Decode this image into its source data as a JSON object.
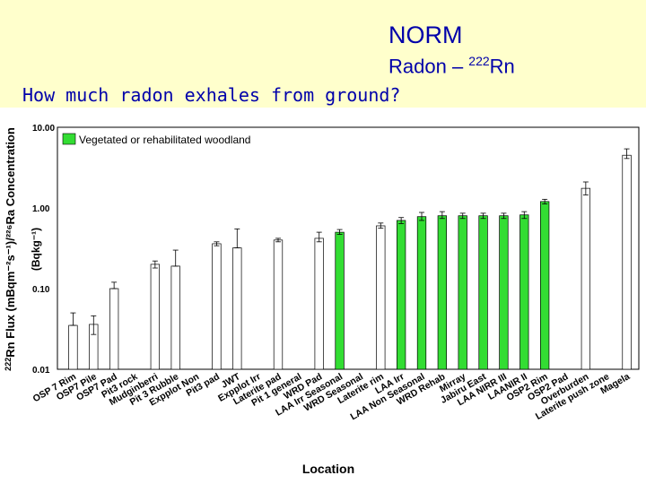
{
  "header": {
    "title": "NORM",
    "subtitle_prefix": "Radon – ",
    "subtitle_sup": "222",
    "subtitle_suffix": "Rn",
    "question": "How much radon exhales from ground?"
  },
  "chart_data": {
    "type": "bar",
    "xlabel": "Location",
    "ylabel_outer": "Rn Flux (mBqm⁻²s⁻¹)/²²⁶Ra Concentration",
    "ylabel_outer_sup": "222",
    "ylabel_inner": "(Bqkg⁻¹)",
    "y_scale": "log",
    "ylim": [
      0.01,
      10
    ],
    "yticks": [
      "10.00",
      "1.00",
      "0.10",
      "0.01"
    ],
    "ytick_values": [
      10,
      1,
      0.1,
      0.01
    ],
    "legend": {
      "label": "Vegetated or rehabilitated woodland",
      "color": "#33dd33",
      "placement": "top-left"
    },
    "colors": {
      "default": "#ffffff",
      "highlight": "#33dd33"
    },
    "categories": [
      "OSP 7 Rim",
      "OSP7 Pile",
      "OSP7 Pad",
      "Pit3 rock",
      "Mudginberri",
      "Pit 3 Rubble",
      "Expplot Non",
      "Pit3 pad",
      "JWT",
      "Expplot Irr",
      "Laterite pad",
      "Pit 1 general",
      "WRD Pad",
      "LAA Irr Seasonal",
      "WRD Seasonal",
      "Laterite rim",
      "LAA Irr",
      "LAA Non Seasonal",
      "WRD Rehab",
      "Mirray",
      "Jabiru East",
      "LAA NIRR III",
      "LAANIR II",
      "OSP2 Rim",
      "OSP2 Pad",
      "Overburden",
      "Laterite push zone",
      "Magela"
    ],
    "values": [
      0.035,
      0.036,
      0.1,
      null,
      0.2,
      0.19,
      null,
      0.36,
      0.32,
      null,
      0.4,
      null,
      0.42,
      0.5,
      null,
      0.6,
      0.7,
      0.78,
      0.8,
      0.8,
      0.8,
      0.8,
      0.82,
      1.2,
      null,
      1.75,
      null,
      4.5
    ],
    "error_high": [
      0.05,
      0.046,
      0.12,
      null,
      0.22,
      0.3,
      null,
      0.38,
      0.55,
      null,
      0.42,
      null,
      0.5,
      0.54,
      null,
      0.65,
      0.76,
      0.88,
      0.9,
      0.86,
      0.86,
      0.86,
      0.9,
      1.28,
      null,
      2.1,
      null,
      5.4
    ],
    "error_low": [
      0.035,
      0.027,
      0.1,
      null,
      0.18,
      0.19,
      null,
      0.34,
      0.32,
      null,
      0.38,
      null,
      0.38,
      0.47,
      null,
      0.56,
      0.64,
      0.7,
      0.74,
      0.74,
      0.74,
      0.74,
      0.74,
      1.12,
      null,
      1.45,
      null,
      4.1
    ],
    "highlight": [
      false,
      false,
      false,
      false,
      false,
      false,
      false,
      false,
      false,
      false,
      false,
      false,
      false,
      true,
      false,
      false,
      true,
      true,
      true,
      true,
      true,
      true,
      true,
      true,
      false,
      false,
      false,
      false
    ]
  }
}
